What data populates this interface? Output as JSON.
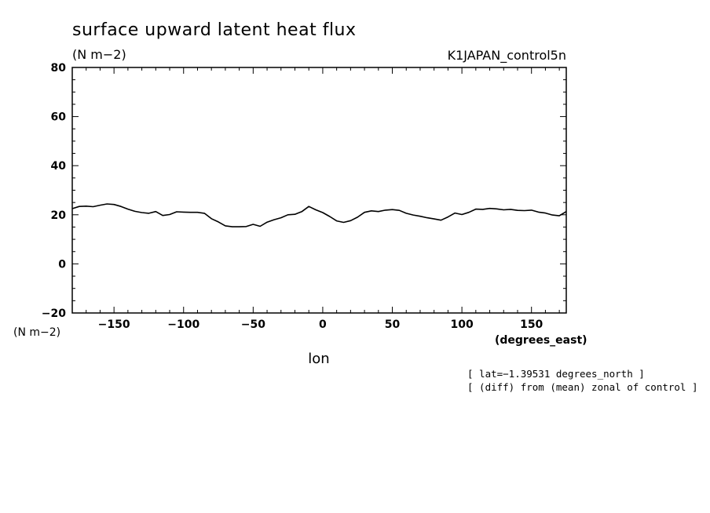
{
  "chart_data": {
    "type": "line",
    "title": "surface upward latent heat flux",
    "units_label": "(N m−2)",
    "run_label": "K1JAPAN_control5n",
    "ylabel_units": "(N m−2)",
    "xlabel": "lon",
    "xunits_label": "(degrees_east)",
    "annotations": [
      "[ lat=−1.39531 degrees_north ]",
      "[ (diff) from (mean) zonal of control ]"
    ],
    "xlim": [
      -180,
      175
    ],
    "ylim": [
      -20,
      80
    ],
    "x_ticks": [
      -150,
      -100,
      -50,
      0,
      50,
      100,
      150
    ],
    "x_tick_labels": [
      "−150",
      "−100",
      "−50",
      "0",
      "50",
      "100",
      "150"
    ],
    "y_ticks": [
      -20,
      0,
      20,
      40,
      60,
      80
    ],
    "y_tick_labels": [
      "−20",
      "0",
      "20",
      "40",
      "60",
      "80"
    ],
    "grid": false,
    "series": [
      {
        "x": [
          -180,
          -175,
          -170,
          -165,
          -160,
          -155,
          -150,
          -145,
          -140,
          -135,
          -130,
          -125,
          -120,
          -115,
          -110,
          -105,
          -100,
          -95,
          -90,
          -85,
          -80,
          -75,
          -70,
          -65,
          -60,
          -55,
          -50,
          -45,
          -40,
          -35,
          -30,
          -25,
          -20,
          -15,
          -10,
          -5,
          0,
          5,
          10,
          15,
          20,
          25,
          30,
          35,
          40,
          45,
          50,
          55,
          60,
          65,
          70,
          75,
          80,
          85,
          90,
          95,
          100,
          105,
          110,
          115,
          120,
          125,
          130,
          135,
          140,
          145,
          150,
          155,
          160,
          165,
          170,
          175
        ],
        "y": [
          22.5,
          23.4,
          23.5,
          23.3,
          23.9,
          24.4,
          24.2,
          23.4,
          22.3,
          21.4,
          20.9,
          20.6,
          21.3,
          19.7,
          20.1,
          21.2,
          21.1,
          21.0,
          21.0,
          20.6,
          18.4,
          17.1,
          15.5,
          15.1,
          15.1,
          15.2,
          16.1,
          15.3,
          17.0,
          18.0,
          18.8,
          20.0,
          20.2,
          21.3,
          23.4,
          22.0,
          20.9,
          19.3,
          17.5,
          16.9,
          17.6,
          19.0,
          21.0,
          21.6,
          21.3,
          21.9,
          22.1,
          21.8,
          20.6,
          19.9,
          19.4,
          18.8,
          18.3,
          17.8,
          19.1,
          20.7,
          20.1,
          21.0,
          22.3,
          22.2,
          22.6,
          22.4,
          22.0,
          22.2,
          21.8,
          21.7,
          21.9,
          21.1,
          20.7,
          19.9,
          19.6,
          21.3
        ]
      }
    ]
  }
}
